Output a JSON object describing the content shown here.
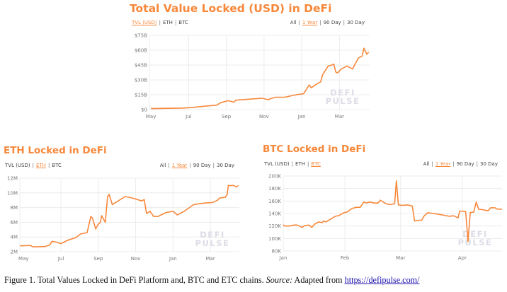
{
  "colors": {
    "accent": "#f7883b",
    "grid": "#ececec",
    "axis_text": "#777777",
    "watermark": "#dcdde6"
  },
  "selectors": {
    "metric_options": [
      "TVL (USD)",
      "ETH",
      "BTC"
    ],
    "range_options": [
      "All",
      "1 Year",
      "90 Day",
      "30 Day"
    ],
    "active_range": "1 Year"
  },
  "watermark": [
    "DEFI",
    "PULSE"
  ],
  "caption": {
    "prefix": "Figure 1. Total Values Locked in DeFi Platform and, BTC and ETC chains. ",
    "source_label": "Source:",
    "middle": " Adapted from ",
    "link": "https://defipulse.com/"
  },
  "chart_data": [
    {
      "type": "line",
      "title": "Total Value Locked (USD) in DeFi",
      "active_metric": "TVL (USD)",
      "xlabel": "",
      "ylabel": "",
      "x_unit": "months since May (1 year view)",
      "xlim": [
        -0.08,
        11.6
      ],
      "ylim": [
        0,
        75
      ],
      "yticks": [
        0,
        15,
        30,
        45,
        60,
        75
      ],
      "ytick_labels": [
        "$0",
        "$15B",
        "$30B",
        "$45B",
        "$60B",
        "$75B"
      ],
      "xticks": [
        0,
        2,
        4,
        6,
        8,
        10
      ],
      "xtick_labels": [
        "May",
        "Jul",
        "Sep",
        "Nov",
        "Jan",
        "Mar"
      ],
      "grid": true,
      "series": [
        {
          "name": "TVL (USD, billions)",
          "x": [
            0,
            1.64,
            2.14,
            2.9,
            3.5,
            3.7,
            4.1,
            4.4,
            4.5,
            5.2,
            5.9,
            6.2,
            6.6,
            7.1,
            7.7,
            8.1,
            8.3,
            8.4,
            8.5,
            8.8,
            9.0,
            9.1,
            9.4,
            9.6,
            9.7,
            9.8,
            9.9,
            10.1,
            10.4,
            10.7,
            10.8,
            11.0,
            11.2,
            11.3,
            11.45,
            11.55
          ],
          "y": [
            1,
            1.5,
            2,
            3.5,
            4.5,
            7,
            9,
            7.5,
            9.5,
            10.5,
            11.5,
            10,
            12.5,
            12.5,
            15,
            16,
            22,
            25,
            22,
            26,
            28,
            35,
            44,
            45,
            46,
            38,
            37,
            41,
            44,
            41,
            45,
            52,
            54,
            62,
            56,
            58
          ]
        }
      ]
    },
    {
      "type": "line",
      "title": "ETH Locked in DeFi",
      "active_metric": "ETH",
      "xlabel": "",
      "ylabel": "",
      "x_unit": "months since May (1 year view)",
      "xlim": [
        -0.2,
        11.55
      ],
      "ylim": [
        2,
        12
      ],
      "yticks": [
        2,
        4,
        6,
        8,
        10,
        12
      ],
      "ytick_labels": [
        "2M",
        "4M",
        "6M",
        "8M",
        "10M",
        "12M"
      ],
      "xticks": [
        0,
        2,
        4,
        6,
        8,
        10
      ],
      "xtick_labels": [
        "May",
        "Jul",
        "Sep",
        "Nov",
        "Jan",
        "Mar"
      ],
      "grid": true,
      "series": [
        {
          "name": "ETH locked (millions)",
          "x": [
            -0.19,
            0.38,
            0.5,
            1.14,
            1.4,
            1.52,
            1.77,
            2.0,
            2.4,
            2.8,
            3.04,
            3.4,
            3.6,
            3.7,
            3.86,
            3.99,
            4.11,
            4.18,
            4.37,
            4.5,
            4.58,
            4.75,
            5.06,
            5.44,
            5.82,
            6.33,
            6.46,
            6.58,
            6.77,
            6.96,
            7.2,
            7.6,
            8.0,
            8.23,
            8.6,
            9.1,
            9.6,
            10.13,
            10.38,
            10.5,
            10.8,
            10.9,
            10.96,
            11.26,
            11.39,
            11.5
          ],
          "y": [
            2.8,
            2.85,
            2.65,
            2.7,
            2.9,
            3.4,
            3.3,
            3.1,
            3.6,
            3.9,
            4.4,
            4.6,
            6.8,
            6.5,
            5.1,
            5.7,
            6.0,
            6.9,
            6.0,
            9.5,
            9.8,
            8.4,
            8.9,
            9.5,
            9.3,
            8.9,
            9.1,
            7.2,
            7.5,
            6.8,
            6.8,
            7.3,
            7.5,
            7.0,
            7.5,
            8.4,
            8.6,
            8.7,
            9.0,
            9.3,
            9.4,
            9.8,
            11.0,
            11.0,
            10.8,
            11.0
          ]
        }
      ]
    },
    {
      "type": "line",
      "title": "BTC Locked in DeFi",
      "active_metric": "BTC",
      "xlabel": "",
      "ylabel": "",
      "x_unit": "days since Jan 1",
      "xlim": [
        0,
        110
      ],
      "ylim": [
        80,
        200
      ],
      "yticks": [
        80,
        100,
        120,
        140,
        160,
        180,
        200
      ],
      "ytick_labels": [
        "80K",
        "100K",
        "120K",
        "140K",
        "160K",
        "180K",
        "200K"
      ],
      "xticks": [
        0,
        31,
        59,
        90
      ],
      "xtick_labels": [
        "Jan",
        "Feb",
        "Mar",
        "Apr"
      ],
      "grid": true,
      "series": [
        {
          "name": "BTC locked (thousands)",
          "x": [
            0,
            0.6,
            3,
            5.4,
            7.1,
            9.5,
            10.7,
            13,
            14.3,
            16,
            17.9,
            19.6,
            20.2,
            21.4,
            23.8,
            26.2,
            28,
            30.4,
            32.1,
            34.5,
            36.9,
            38.7,
            40.5,
            41.7,
            43.5,
            45.8,
            47.6,
            48.8,
            50.6,
            52.4,
            54.2,
            56,
            56.9,
            57.9,
            60.1,
            62.5,
            64.9,
            66,
            67.9,
            69.6,
            70.8,
            72.6,
            76.2,
            79.8,
            83.3,
            85.7,
            87.9,
            88.7,
            91.7,
            92.9,
            94,
            95.8,
            97,
            98.2,
            100,
            103,
            104.2,
            106.5,
            107.7,
            110
          ],
          "y": [
            122,
            120,
            120,
            121.6,
            121.6,
            117.8,
            120.5,
            121.6,
            117.8,
            123.5,
            126.5,
            125.4,
            128,
            126.5,
            131,
            135.6,
            136.7,
            141.3,
            142.4,
            148,
            150,
            150,
            158.3,
            156.8,
            158.3,
            156.8,
            156.8,
            161.4,
            157.6,
            154.9,
            154.5,
            155.7,
            192.4,
            153.8,
            153,
            153.8,
            151.9,
            128,
            129.2,
            129.2,
            136,
            141.3,
            139.8,
            137.9,
            135.6,
            136.4,
            133,
            144,
            143.2,
            95,
            141.7,
            142.4,
            158.3,
            147,
            146.2,
            144.3,
            149.2,
            149.2,
            147,
            147
          ]
        }
      ]
    }
  ]
}
